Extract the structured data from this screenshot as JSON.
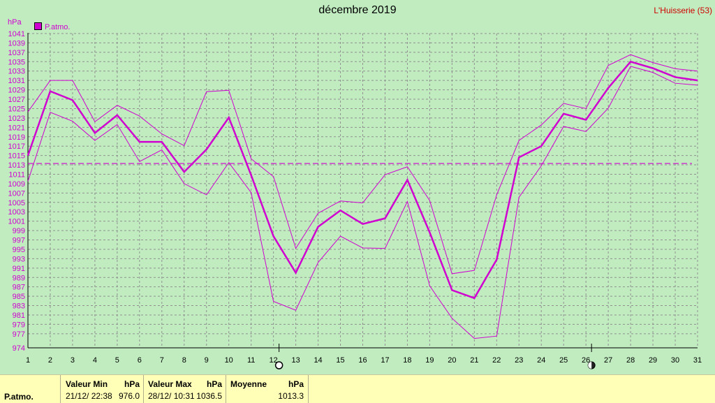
{
  "title": "décembre 2019",
  "station": "L'Huisserie (53)",
  "legend": {
    "label": "P.atmo.",
    "color": "#d000d0"
  },
  "colors": {
    "background": "#c0ecc0",
    "series": "#d000d0",
    "grid": "#909090",
    "stats_bg": "#ffffb8"
  },
  "chart_data": {
    "type": "line",
    "ylabel": "hPa",
    "ylim": [
      974,
      1041
    ],
    "yticks": [
      974,
      977,
      979,
      981,
      983,
      985,
      987,
      989,
      991,
      993,
      995,
      997,
      999,
      1001,
      1003,
      1005,
      1007,
      1009,
      1011,
      1013,
      1015,
      1017,
      1019,
      1021,
      1023,
      1025,
      1027,
      1029,
      1031,
      1033,
      1035,
      1037,
      1039,
      1041
    ],
    "x": [
      1,
      2,
      3,
      4,
      5,
      6,
      7,
      8,
      9,
      10,
      11,
      12,
      13,
      14,
      15,
      16,
      17,
      18,
      19,
      20,
      21,
      22,
      23,
      24,
      25,
      26,
      27,
      28,
      29,
      30,
      31
    ],
    "grid": true,
    "series": [
      {
        "role": "max",
        "values": [
          1024.3,
          1031.0,
          1031.0,
          1022.2,
          1025.7,
          1023.4,
          1019.6,
          1017.1,
          1028.6,
          1028.9,
          1014.3,
          1010.5,
          995.2,
          1002.7,
          1005.3,
          1004.9,
          1010.9,
          1012.6,
          1005.4,
          989.8,
          990.5,
          1006.6,
          1018.2,
          1021.5,
          1026.1,
          1025.0,
          1034.2,
          1036.5,
          1034.8,
          1033.5,
          1033.0
        ]
      },
      {
        "role": "mean",
        "values": [
          1015.0,
          1028.7,
          1026.8,
          1019.8,
          1023.6,
          1017.9,
          1017.9,
          1011.5,
          1016.3,
          1023.1,
          1010.8,
          997.8,
          990.0,
          999.8,
          1003.3,
          1000.4,
          1001.6,
          1009.8,
          998.6,
          986.3,
          984.6,
          992.8,
          1014.6,
          1017.0,
          1023.9,
          1022.6,
          1029.4,
          1035.0,
          1033.6,
          1031.7,
          1031.0
        ]
      },
      {
        "role": "min",
        "values": [
          1009.5,
          1024.2,
          1022.3,
          1018.2,
          1021.6,
          1013.7,
          1016.2,
          1009.0,
          1006.6,
          1013.5,
          1007.1,
          983.9,
          982.0,
          992.2,
          997.8,
          995.3,
          995.2,
          1005.2,
          987.2,
          980.3,
          976.0,
          976.5,
          1006.1,
          1012.8,
          1021.2,
          1020.1,
          1025.1,
          1034.0,
          1032.7,
          1030.4,
          1030.0
        ]
      }
    ],
    "average_line": 1013.3,
    "moon_phases": [
      {
        "day": 12,
        "phase": "full"
      },
      {
        "day": 26,
        "phase": "new"
      }
    ]
  },
  "stats": {
    "row_label": "P.atmo.",
    "min": {
      "header": "Valeur Min",
      "unit": "hPa",
      "date": "21/12/  22:38",
      "value": "976.0"
    },
    "max": {
      "header": "Valeur Max",
      "unit": "hPa",
      "date": "28/12/  10:31",
      "value": "1036.5"
    },
    "mean": {
      "header": "Moyenne",
      "unit": "hPa",
      "value": "1013.3"
    }
  }
}
